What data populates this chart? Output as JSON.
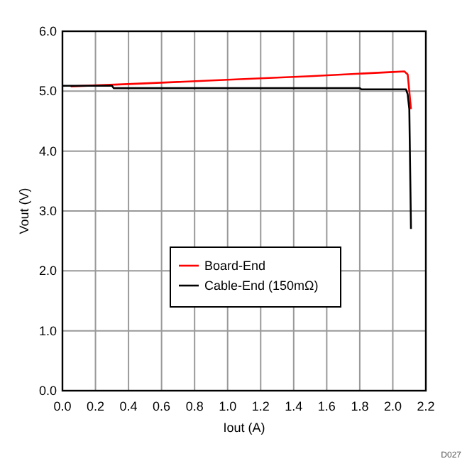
{
  "chart_data": {
    "type": "line",
    "xlabel": "Iout (A)",
    "ylabel": "Vout (V)",
    "xlim": [
      0,
      2.2
    ],
    "ylim": [
      0,
      6
    ],
    "xticks": [
      {
        "value": 0,
        "label": "0.0"
      },
      {
        "value": 0.2,
        "label": "0.2"
      },
      {
        "value": 0.4,
        "label": "0.4"
      },
      {
        "value": 0.6,
        "label": "0.6"
      },
      {
        "value": 0.8,
        "label": "0.8"
      },
      {
        "value": 1,
        "label": "1.0"
      },
      {
        "value": 1.2,
        "label": "1.2"
      },
      {
        "value": 1.4,
        "label": "1.4"
      },
      {
        "value": 1.6,
        "label": "1.6"
      },
      {
        "value": 1.8,
        "label": "1.8"
      },
      {
        "value": 2,
        "label": "2.0"
      },
      {
        "value": 2.2,
        "label": "2.2"
      }
    ],
    "yticks": [
      {
        "value": 0,
        "label": "0.0"
      },
      {
        "value": 1,
        "label": "1.0"
      },
      {
        "value": 2,
        "label": "2.0"
      },
      {
        "value": 3,
        "label": "3.0"
      },
      {
        "value": 4,
        "label": "4.0"
      },
      {
        "value": 5,
        "label": "5.0"
      },
      {
        "value": 6,
        "label": "6.0"
      }
    ],
    "grid": true,
    "legend": "center",
    "line_style": "solid",
    "annotations": [
      "D027"
    ],
    "series": [
      {
        "name": "Board-End",
        "color": "#ff0000",
        "x": [
          0.05,
          0.5,
          1.0,
          1.5,
          2.0,
          2.07,
          2.09,
          2.1,
          2.11
        ],
        "values": [
          5.08,
          5.13,
          5.19,
          5.25,
          5.32,
          5.33,
          5.28,
          5.0,
          4.7
        ]
      },
      {
        "name": "Cable-End (150mΩ)",
        "color": "#000000",
        "x": [
          0,
          0.3,
          0.31,
          1.8,
          1.81,
          2.08,
          2.09,
          2.1,
          2.11
        ],
        "values": [
          5.09,
          5.09,
          5.05,
          5.05,
          5.03,
          5.03,
          4.95,
          4.7,
          2.7
        ]
      }
    ]
  }
}
